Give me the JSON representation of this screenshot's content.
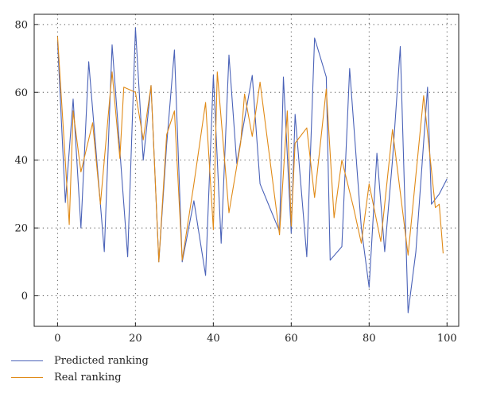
{
  "chart_data": {
    "type": "line",
    "title": "",
    "xlabel": "",
    "ylabel": "",
    "xlim": [
      -6,
      103
    ],
    "ylim": [
      -9,
      83
    ],
    "xticks": [
      0,
      20,
      40,
      60,
      80,
      100
    ],
    "yticks": [
      0,
      20,
      40,
      60,
      80
    ],
    "grid": true,
    "legend_position": "bottom-left",
    "series": [
      {
        "name": "Predicted ranking",
        "color": "#4a62b8",
        "x": [
          0,
          2,
          4,
          6,
          8,
          12,
          14,
          18,
          20,
          22,
          24,
          26,
          28,
          30,
          32,
          35,
          38,
          40,
          42,
          44,
          46,
          50,
          52,
          57,
          58,
          60,
          61,
          64,
          66,
          69,
          70,
          73,
          75,
          78,
          80,
          82,
          84,
          86,
          88,
          90,
          92,
          95,
          96,
          98,
          100
        ],
        "values": [
          75,
          27.5,
          58,
          20,
          69,
          13,
          74,
          11.5,
          79,
          40,
          62,
          10,
          44.5,
          72.5,
          10,
          28,
          6,
          65,
          15.5,
          71,
          39,
          65,
          33,
          19,
          64.5,
          18.5,
          53.5,
          11.5,
          76,
          64.5,
          10.5,
          14.5,
          67,
          20,
          2.5,
          42,
          13,
          40,
          73.5,
          -5,
          13,
          61.5,
          27,
          30,
          34.5
        ]
      },
      {
        "name": "Real ranking",
        "color": "#e08a17",
        "x": [
          0,
          3,
          4,
          6,
          9,
          11,
          14,
          16,
          17,
          20,
          22,
          24,
          26,
          28,
          30,
          32,
          35,
          38,
          40,
          41,
          44,
          47,
          48,
          50,
          52,
          57,
          59,
          60,
          61,
          64,
          66,
          69,
          71,
          73,
          76,
          78,
          80,
          83,
          86,
          90,
          94,
          97,
          98,
          99
        ],
        "values": [
          76.5,
          21,
          54.5,
          36.5,
          51,
          27,
          66,
          40.5,
          61.5,
          60,
          46,
          62,
          10,
          47.5,
          54.5,
          10.5,
          33,
          57,
          19.5,
          66,
          24.5,
          45,
          59.5,
          47,
          63,
          18,
          54.5,
          20.5,
          45,
          49.5,
          29,
          61,
          23,
          40,
          26,
          15.5,
          33,
          16,
          49,
          12,
          59,
          26,
          27,
          12.5
        ]
      }
    ]
  }
}
